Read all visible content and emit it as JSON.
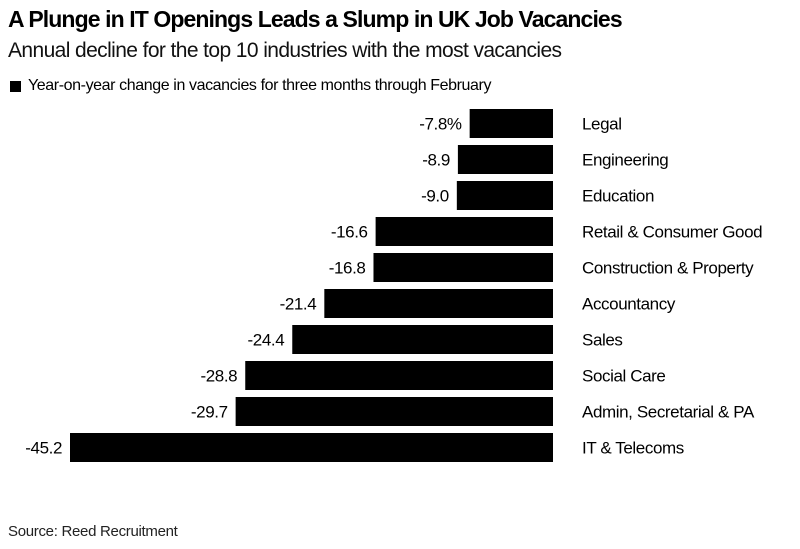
{
  "title": "A Plunge in IT Openings Leads a Slump in UK Job Vacancies",
  "subtitle": "Annual decline for the top 10 industries with the most vacancies",
  "legend": "Year-on-year change in vacancies for three months through February",
  "source": "Source: Reed Recruitment",
  "chart_data": {
    "type": "bar",
    "orientation": "horizontal",
    "categories": [
      "Legal",
      "Engineering",
      "Education",
      "Retail & Consumer Good",
      "Construction & Property",
      "Accountancy",
      "Sales",
      "Social Care",
      "Admin, Secretarial & PA",
      "IT & Telecoms"
    ],
    "values": [
      -7.8,
      -8.9,
      -9.0,
      -16.6,
      -16.8,
      -21.4,
      -24.4,
      -28.8,
      -29.7,
      -45.2
    ],
    "data_labels": [
      "-7.8%",
      "-8.9",
      "-9.0",
      "-16.6",
      "-16.8",
      "-21.4",
      "-24.4",
      "-28.8",
      "-29.7",
      "-45.2"
    ],
    "series": [
      {
        "name": "Year-on-year change in vacancies for three months through February",
        "color": "#000000"
      }
    ],
    "xlim": [
      -45.2,
      0
    ],
    "grid": false,
    "legend_position": "top-left"
  }
}
